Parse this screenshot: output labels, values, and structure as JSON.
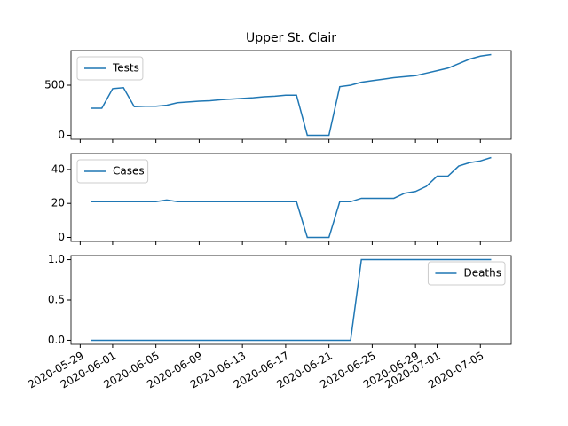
{
  "chart_data": [
    {
      "type": "line",
      "title": "Upper St. Clair",
      "x": [
        "2020-05-30",
        "2020-05-31",
        "2020-06-01",
        "2020-06-02",
        "2020-06-03",
        "2020-06-04",
        "2020-06-05",
        "2020-06-06",
        "2020-06-07",
        "2020-06-08",
        "2020-06-09",
        "2020-06-10",
        "2020-06-11",
        "2020-06-12",
        "2020-06-13",
        "2020-06-14",
        "2020-06-15",
        "2020-06-16",
        "2020-06-17",
        "2020-06-18",
        "2020-06-19",
        "2020-06-20",
        "2020-06-21",
        "2020-06-22",
        "2020-06-23",
        "2020-06-24",
        "2020-06-25",
        "2020-06-26",
        "2020-06-27",
        "2020-06-28",
        "2020-06-29",
        "2020-06-30",
        "2020-07-01",
        "2020-07-02",
        "2020-07-03",
        "2020-07-04",
        "2020-07-05",
        "2020-07-06"
      ],
      "series": [
        {
          "name": "Tests",
          "color": "#1f77b4",
          "values": [
            270,
            270,
            465,
            475,
            285,
            290,
            290,
            300,
            325,
            333,
            340,
            345,
            355,
            362,
            368,
            375,
            385,
            390,
            400,
            400,
            0,
            0,
            0,
            485,
            500,
            530,
            545,
            560,
            575,
            585,
            595,
            620,
            645,
            670,
            715,
            760,
            790,
            805
          ]
        }
      ],
      "xlim": [
        "2020-05-28T03:36",
        "2020-07-07T20:24"
      ],
      "xticks": [
        "2020-05-29",
        "2020-06-01",
        "2020-06-05",
        "2020-06-09",
        "2020-06-13",
        "2020-06-17",
        "2020-06-21",
        "2020-06-25",
        "2020-06-29",
        "2020-07-01",
        "2020-07-05"
      ],
      "ylim": [
        -40.25,
        845.25
      ],
      "yticks": [
        0,
        500
      ],
      "legend": "upper left"
    },
    {
      "type": "line",
      "x": [
        "2020-05-30",
        "2020-05-31",
        "2020-06-01",
        "2020-06-02",
        "2020-06-03",
        "2020-06-04",
        "2020-06-05",
        "2020-06-06",
        "2020-06-07",
        "2020-06-08",
        "2020-06-09",
        "2020-06-10",
        "2020-06-11",
        "2020-06-12",
        "2020-06-13",
        "2020-06-14",
        "2020-06-15",
        "2020-06-16",
        "2020-06-17",
        "2020-06-18",
        "2020-06-19",
        "2020-06-20",
        "2020-06-21",
        "2020-06-22",
        "2020-06-23",
        "2020-06-24",
        "2020-06-25",
        "2020-06-26",
        "2020-06-27",
        "2020-06-28",
        "2020-06-29",
        "2020-06-30",
        "2020-07-01",
        "2020-07-02",
        "2020-07-03",
        "2020-07-04",
        "2020-07-05",
        "2020-07-06"
      ],
      "series": [
        {
          "name": "Cases",
          "color": "#1f77b4",
          "values": [
            21,
            21,
            21,
            21,
            21,
            21,
            21,
            22,
            21,
            21,
            21,
            21,
            21,
            21,
            21,
            21,
            21,
            21,
            21,
            21,
            0,
            0,
            0,
            21,
            21,
            23,
            23,
            23,
            23,
            26,
            27,
            30,
            36,
            36,
            42,
            44,
            45,
            47
          ]
        }
      ],
      "xlim": [
        "2020-05-28T03:36",
        "2020-07-07T20:24"
      ],
      "xticks": [
        "2020-05-29",
        "2020-06-01",
        "2020-06-05",
        "2020-06-09",
        "2020-06-13",
        "2020-06-17",
        "2020-06-21",
        "2020-06-25",
        "2020-06-29",
        "2020-07-01",
        "2020-07-05"
      ],
      "ylim": [
        -2.35,
        49.35
      ],
      "yticks": [
        0,
        20,
        40
      ],
      "legend": "upper left"
    },
    {
      "type": "line",
      "x": [
        "2020-05-30",
        "2020-05-31",
        "2020-06-01",
        "2020-06-02",
        "2020-06-03",
        "2020-06-04",
        "2020-06-05",
        "2020-06-06",
        "2020-06-07",
        "2020-06-08",
        "2020-06-09",
        "2020-06-10",
        "2020-06-11",
        "2020-06-12",
        "2020-06-13",
        "2020-06-14",
        "2020-06-15",
        "2020-06-16",
        "2020-06-17",
        "2020-06-18",
        "2020-06-19",
        "2020-06-20",
        "2020-06-21",
        "2020-06-22",
        "2020-06-23",
        "2020-06-24",
        "2020-06-25",
        "2020-06-26",
        "2020-06-27",
        "2020-06-28",
        "2020-06-29",
        "2020-06-30",
        "2020-07-01",
        "2020-07-02",
        "2020-07-03",
        "2020-07-04",
        "2020-07-05",
        "2020-07-06"
      ],
      "series": [
        {
          "name": "Deaths",
          "color": "#1f77b4",
          "values": [
            0,
            0,
            0,
            0,
            0,
            0,
            0,
            0,
            0,
            0,
            0,
            0,
            0,
            0,
            0,
            0,
            0,
            0,
            0,
            0,
            0,
            0,
            0,
            0,
            0,
            1,
            1,
            1,
            1,
            1,
            1,
            1,
            1,
            1,
            1,
            1,
            1,
            1
          ]
        }
      ],
      "xlim": [
        "2020-05-28T03:36",
        "2020-07-07T20:24"
      ],
      "xticks": [
        "2020-05-29",
        "2020-06-01",
        "2020-06-05",
        "2020-06-09",
        "2020-06-13",
        "2020-06-17",
        "2020-06-21",
        "2020-06-25",
        "2020-06-29",
        "2020-07-01",
        "2020-07-05"
      ],
      "ylim": [
        -0.05,
        1.05
      ],
      "yticks": [
        {
          "value": 0,
          "label": "0.0"
        },
        {
          "value": 0.5,
          "label": "0.5"
        },
        {
          "value": 1,
          "label": "1.0"
        }
      ],
      "legend": "upper right"
    }
  ]
}
